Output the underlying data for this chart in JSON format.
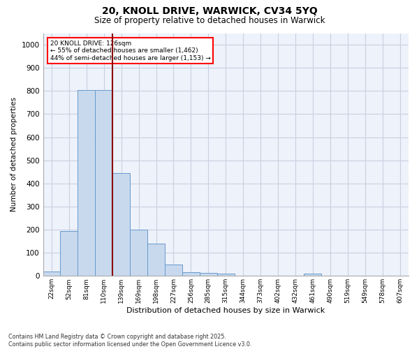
{
  "title1": "20, KNOLL DRIVE, WARWICK, CV34 5YQ",
  "title2": "Size of property relative to detached houses in Warwick",
  "xlabel": "Distribution of detached houses by size in Warwick",
  "ylabel": "Number of detached properties",
  "bar_labels": [
    "22sqm",
    "52sqm",
    "81sqm",
    "110sqm",
    "139sqm",
    "169sqm",
    "198sqm",
    "227sqm",
    "256sqm",
    "285sqm",
    "315sqm",
    "344sqm",
    "373sqm",
    "402sqm",
    "432sqm",
    "461sqm",
    "490sqm",
    "519sqm",
    "549sqm",
    "578sqm",
    "607sqm"
  ],
  "bar_values": [
    18,
    195,
    805,
    805,
    445,
    200,
    140,
    50,
    15,
    12,
    10,
    0,
    0,
    0,
    0,
    10,
    0,
    0,
    0,
    0,
    0
  ],
  "bar_color": "#c8d9ee",
  "bar_edge_color": "#6699cc",
  "vline_x": 3.5,
  "vline_color": "darkred",
  "annotation_box_text": "20 KNOLL DRIVE: 126sqm\n← 55% of detached houses are smaller (1,462)\n44% of semi-detached houses are larger (1,153) →",
  "ylim": [
    0,
    1050
  ],
  "yticks": [
    0,
    100,
    200,
    300,
    400,
    500,
    600,
    700,
    800,
    900,
    1000
  ],
  "grid_color": "#c8d0e0",
  "background_color": "#eef2fa",
  "footer1": "Contains HM Land Registry data © Crown copyright and database right 2025.",
  "footer2": "Contains public sector information licensed under the Open Government Licence v3.0."
}
